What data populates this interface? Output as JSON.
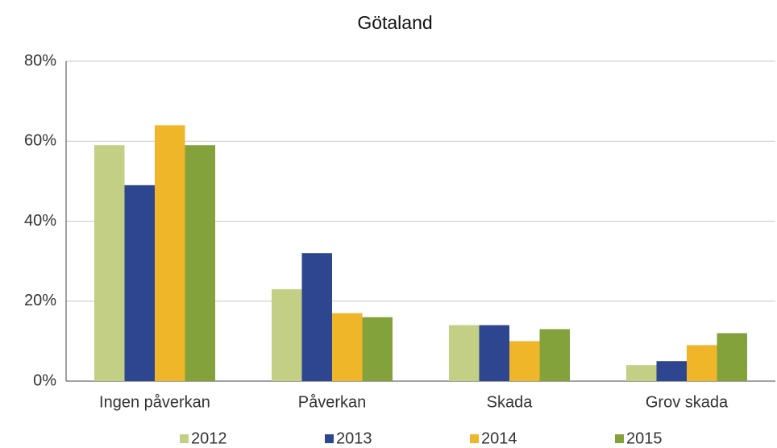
{
  "chart_data": {
    "type": "bar",
    "title": "Götaland",
    "categories": [
      "Ingen påverkan",
      "Påverkan",
      "Skada",
      "Grov skada"
    ],
    "series": [
      {
        "name": "2012",
        "color": "#c3cf85",
        "values": [
          59,
          23,
          14,
          4
        ]
      },
      {
        "name": "2013",
        "color": "#2e4690",
        "values": [
          49,
          32,
          14,
          5
        ]
      },
      {
        "name": "2014",
        "color": "#f0b62a",
        "values": [
          64,
          17,
          10,
          9
        ]
      },
      {
        "name": "2015",
        "color": "#83a23c",
        "values": [
          59,
          16,
          13,
          12
        ]
      }
    ],
    "ylim": [
      0,
      80
    ],
    "yticks": [
      {
        "value": 0,
        "label": "0%"
      },
      {
        "value": 20,
        "label": "20%"
      },
      {
        "value": 40,
        "label": "40%"
      },
      {
        "value": 60,
        "label": "60%"
      },
      {
        "value": 80,
        "label": "80%"
      }
    ],
    "grid": true,
    "legend": "bottom"
  }
}
